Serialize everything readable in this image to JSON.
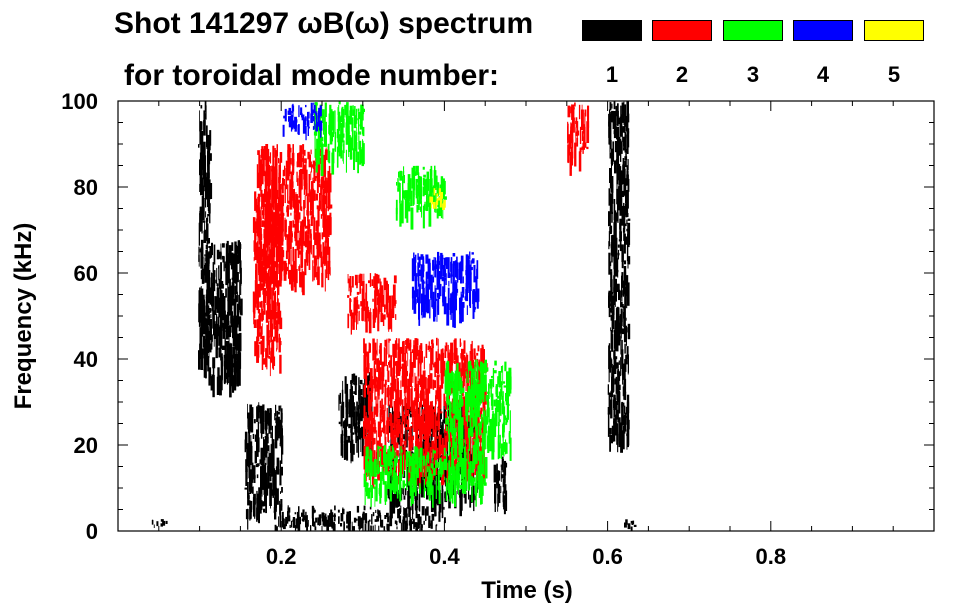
{
  "chart_data": {
    "type": "heatmap",
    "title": "Shot 141297 ωB(ω) spectrum",
    "subtitle": "for toroidal mode number:",
    "xlabel": "Time (s)",
    "ylabel": "Frequency (kHz)",
    "xlim": [
      0,
      1.0
    ],
    "ylim": [
      0,
      100
    ],
    "x_ticks": [
      0.2,
      0.4,
      0.6,
      0.8
    ],
    "x_tick_labels": [
      "0.2",
      "0.4",
      "0.6",
      "0.8"
    ],
    "y_ticks": [
      0,
      20,
      40,
      60,
      80,
      100
    ],
    "y_tick_labels": [
      "0",
      "20",
      "40",
      "60",
      "80",
      "100"
    ],
    "legend": {
      "placement": "top-right",
      "entries": [
        {
          "label": "1",
          "color": "#000000"
        },
        {
          "label": "2",
          "color": "#ff0000"
        },
        {
          "label": "3",
          "color": "#00ff00"
        },
        {
          "label": "4",
          "color": "#0000ff"
        },
        {
          "label": "5",
          "color": "#ffff00"
        }
      ]
    },
    "regions": [
      {
        "mode": 1,
        "t": [
          0.105,
          0.15
        ],
        "f": [
          35,
          68
        ]
      },
      {
        "mode": 1,
        "t": [
          0.098,
          0.112
        ],
        "f": [
          40,
          100
        ]
      },
      {
        "mode": 1,
        "t": [
          0.6,
          0.625
        ],
        "f": [
          22,
          100
        ]
      },
      {
        "mode": 1,
        "t": [
          0.27,
          0.31
        ],
        "f": [
          20,
          37
        ]
      },
      {
        "mode": 1,
        "t": [
          0.33,
          0.44
        ],
        "f": [
          8,
          30
        ]
      },
      {
        "mode": 1,
        "t": [
          0.46,
          0.475
        ],
        "f": [
          6,
          18
        ]
      },
      {
        "mode": 1,
        "t": [
          0.19,
          0.4
        ],
        "f": [
          1,
          6
        ]
      },
      {
        "mode": 1,
        "t": [
          0.04,
          0.06
        ],
        "f": [
          1,
          3
        ]
      },
      {
        "mode": 1,
        "t": [
          0.155,
          0.2
        ],
        "f": [
          5,
          30
        ]
      },
      {
        "mode": 1,
        "t": [
          0.62,
          0.635
        ],
        "f": [
          1,
          3
        ]
      },
      {
        "mode": 2,
        "t": [
          0.17,
          0.26
        ],
        "f": [
          60,
          90
        ]
      },
      {
        "mode": 2,
        "t": [
          0.28,
          0.34
        ],
        "f": [
          50,
          60
        ]
      },
      {
        "mode": 2,
        "t": [
          0.165,
          0.2
        ],
        "f": [
          40,
          80
        ]
      },
      {
        "mode": 2,
        "t": [
          0.55,
          0.575
        ],
        "f": [
          88,
          100
        ]
      },
      {
        "mode": 2,
        "t": [
          0.3,
          0.45
        ],
        "f": [
          15,
          45
        ]
      },
      {
        "mode": 3,
        "t": [
          0.24,
          0.3
        ],
        "f": [
          88,
          100
        ]
      },
      {
        "mode": 3,
        "t": [
          0.34,
          0.4
        ],
        "f": [
          75,
          85
        ]
      },
      {
        "mode": 3,
        "t": [
          0.4,
          0.48
        ],
        "f": [
          20,
          40
        ]
      },
      {
        "mode": 3,
        "t": [
          0.3,
          0.45
        ],
        "f": [
          10,
          20
        ]
      },
      {
        "mode": 4,
        "t": [
          0.2,
          0.25
        ],
        "f": [
          94,
          100
        ]
      },
      {
        "mode": 4,
        "t": [
          0.36,
          0.44
        ],
        "f": [
          52,
          65
        ]
      },
      {
        "mode": 5,
        "t": [
          0.38,
          0.4
        ],
        "f": [
          75,
          80
        ]
      }
    ]
  }
}
